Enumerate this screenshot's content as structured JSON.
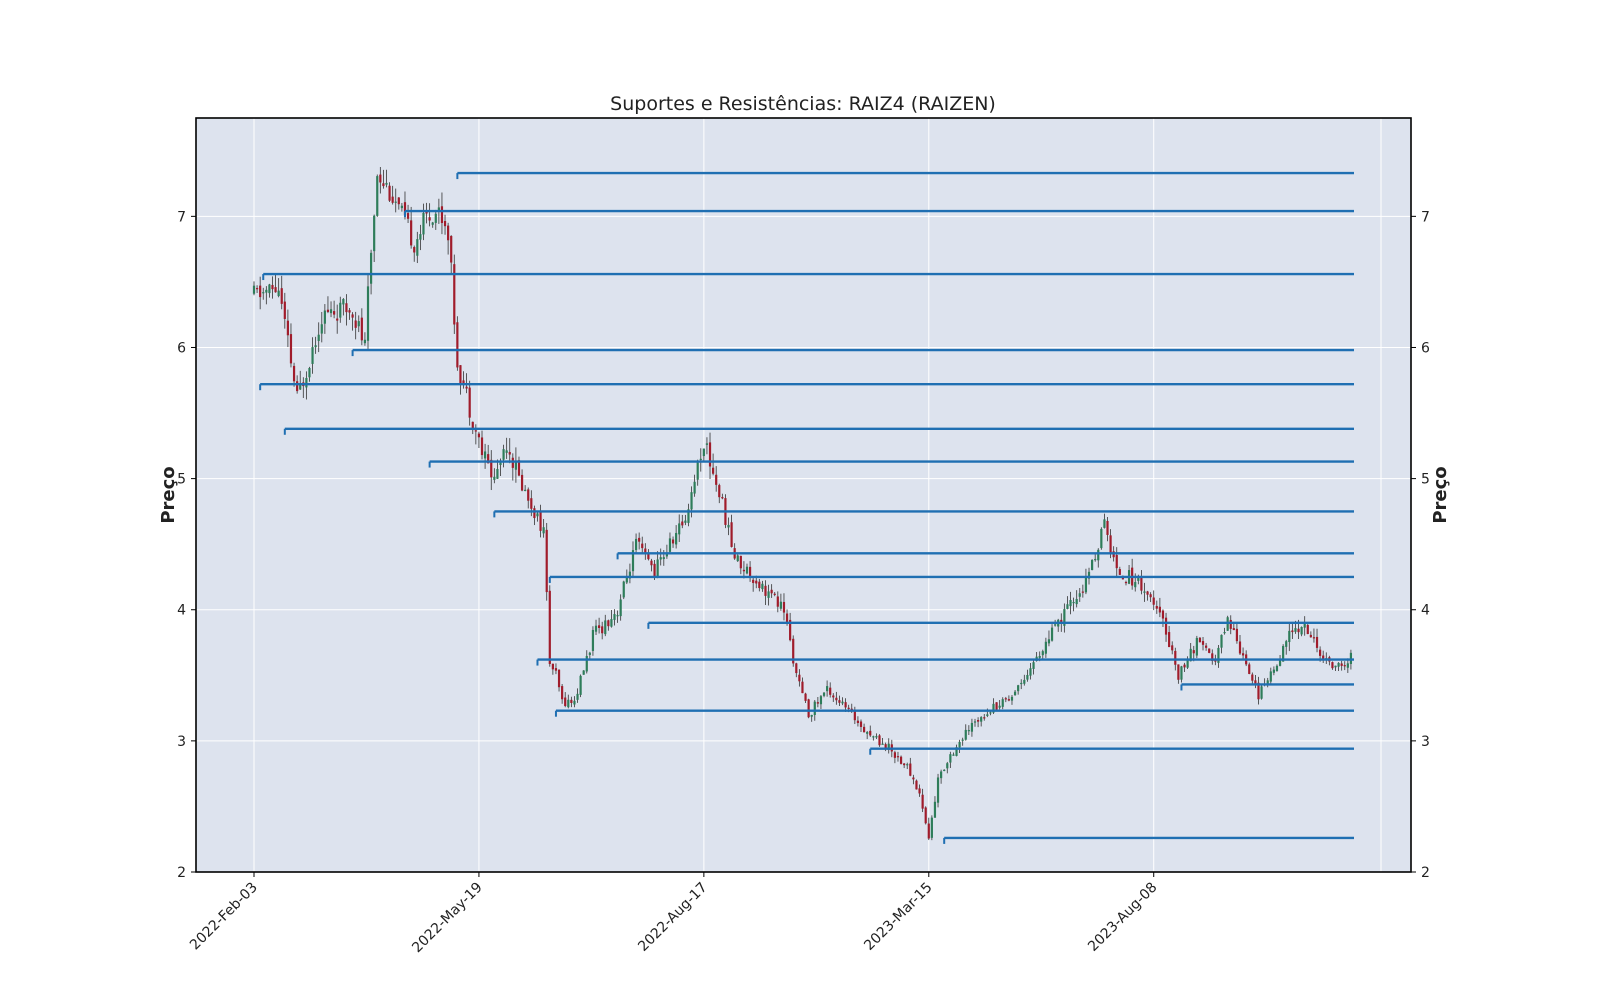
{
  "chart_data": {
    "type": "candlestick",
    "title": "Suportes e Resistências: RAIZ4 (RAIZEN)",
    "ylabel": "Preço",
    "ylabel_right": "Preço",
    "ylim": [
      2,
      7.75
    ],
    "yticks": [
      2,
      3,
      4,
      5,
      6,
      7
    ],
    "xticks": [
      {
        "index": 0,
        "label": "2022-Feb-03"
      },
      {
        "index": 73,
        "label": "2022-May-19"
      },
      {
        "index": 146,
        "label": "2022-Aug-17"
      },
      {
        "index": 219,
        "label": "2023-Mar-15"
      },
      {
        "index": 292,
        "label": "2023-Aug-08"
      }
    ],
    "x_count": 357,
    "grid": true,
    "colors": {
      "background": "#dde3ee",
      "grid": "#ffffff",
      "level_line": "#1f6fb2",
      "up_candle": "#2e7d5a",
      "down_candle": "#a01c2b",
      "wick": "#333333"
    },
    "anchors": [
      [
        0,
        6.4
      ],
      [
        8,
        6.45
      ],
      [
        14,
        5.6
      ],
      [
        22,
        6.25
      ],
      [
        32,
        6.3
      ],
      [
        36,
        6.0
      ],
      [
        37,
        6.4
      ],
      [
        40,
        7.35
      ],
      [
        44,
        7.2
      ],
      [
        52,
        6.8
      ],
      [
        56,
        7.0
      ],
      [
        60,
        7.05
      ],
      [
        63,
        6.9
      ],
      [
        66,
        5.9
      ],
      [
        70,
        5.55
      ],
      [
        74,
        5.2
      ],
      [
        78,
        5.0
      ],
      [
        82,
        5.3
      ],
      [
        86,
        5.0
      ],
      [
        90,
        4.8
      ],
      [
        94,
        4.6
      ],
      [
        96,
        3.6
      ],
      [
        98,
        3.5
      ],
      [
        100,
        3.3
      ],
      [
        104,
        3.3
      ],
      [
        110,
        3.8
      ],
      [
        118,
        4.0
      ],
      [
        124,
        4.5
      ],
      [
        130,
        4.3
      ],
      [
        140,
        4.7
      ],
      [
        146,
        5.3
      ],
      [
        152,
        4.8
      ],
      [
        156,
        4.4
      ],
      [
        164,
        4.2
      ],
      [
        172,
        4.0
      ],
      [
        176,
        3.5
      ],
      [
        180,
        3.2
      ],
      [
        186,
        3.4
      ],
      [
        194,
        3.2
      ],
      [
        200,
        3.05
      ],
      [
        206,
        2.95
      ],
      [
        212,
        2.8
      ],
      [
        216,
        2.6
      ],
      [
        219,
        2.26
      ],
      [
        222,
        2.7
      ],
      [
        226,
        2.9
      ],
      [
        236,
        3.2
      ],
      [
        246,
        3.35
      ],
      [
        256,
        3.7
      ],
      [
        264,
        4.0
      ],
      [
        270,
        4.2
      ],
      [
        274,
        4.5
      ],
      [
        276,
        4.65
      ],
      [
        280,
        4.3
      ],
      [
        288,
        4.2
      ],
      [
        296,
        3.85
      ],
      [
        300,
        3.5
      ],
      [
        306,
        3.75
      ],
      [
        312,
        3.6
      ],
      [
        316,
        3.95
      ],
      [
        322,
        3.6
      ],
      [
        326,
        3.35
      ],
      [
        330,
        3.5
      ],
      [
        336,
        3.8
      ],
      [
        340,
        3.9
      ],
      [
        344,
        3.75
      ],
      [
        348,
        3.6
      ],
      [
        354,
        3.55
      ],
      [
        357,
        3.7
      ]
    ],
    "levels": [
      {
        "start_index": 66,
        "value": 7.33
      },
      {
        "start_index": 49,
        "value": 7.04
      },
      {
        "start_index": 3,
        "value": 6.56
      },
      {
        "start_index": 32,
        "value": 5.98
      },
      {
        "start_index": 2,
        "value": 5.72
      },
      {
        "start_index": 10,
        "value": 5.38
      },
      {
        "start_index": 57,
        "value": 5.13
      },
      {
        "start_index": 78,
        "value": 4.75
      },
      {
        "start_index": 118,
        "value": 4.43
      },
      {
        "start_index": 96,
        "value": 4.25
      },
      {
        "start_index": 128,
        "value": 3.9
      },
      {
        "start_index": 92,
        "value": 3.62
      },
      {
        "start_index": 301,
        "value": 3.43
      },
      {
        "start_index": 98,
        "value": 3.23
      },
      {
        "start_index": 200,
        "value": 2.94
      },
      {
        "start_index": 224,
        "value": 2.26
      }
    ]
  }
}
